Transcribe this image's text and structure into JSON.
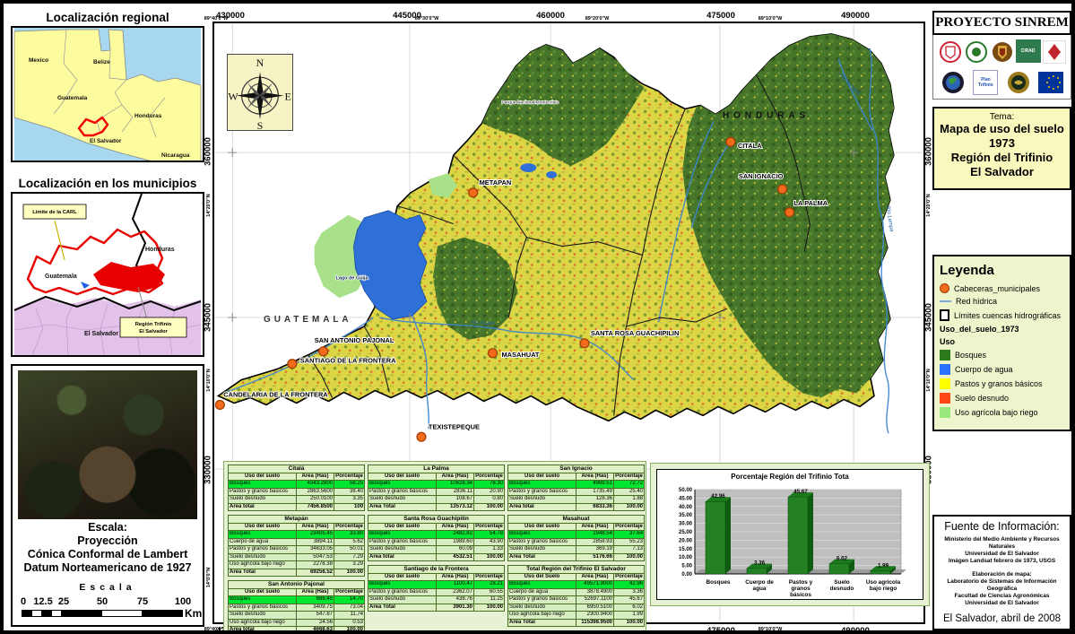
{
  "left_panel": {
    "regional": {
      "title": "Localización regional",
      "labels": [
        "Mexico",
        "Belize",
        "Guatemala",
        "Honduras",
        "El Salvador",
        "Nicaragua"
      ]
    },
    "municipios": {
      "title": "Localización en los municipios",
      "callout_carl": "Limite de la CARL",
      "callout_trifinio_1": "Región Trifinio",
      "callout_trifinio_2": "El Salvador",
      "labels": [
        "Guatemala",
        "Honduras",
        "El Salvador"
      ]
    },
    "escala": {
      "line1": "Escala:",
      "line2": "Proyección",
      "line3": "Cónica Conformal de Lambert",
      "line4": "Datum Norteamericano de 1927",
      "spaced_title": "Escala",
      "ticks": [
        "0",
        "12.5",
        "25",
        "50",
        "75",
        "100"
      ],
      "unit": "Km"
    }
  },
  "map": {
    "utm_x": [
      "430000",
      "445000",
      "460000",
      "475000",
      "490000"
    ],
    "lon_labels": [
      "89°40'0\"W",
      "89°30'0\"W",
      "89°20'0\"W",
      "89°10'0\"W"
    ],
    "utm_y": [
      "360000",
      "345000",
      "330000"
    ],
    "lat_labels": [
      "14°20'0\"N",
      "14°10'0\"N",
      "14°0'0\"N"
    ],
    "country_labels": [
      "HONDURAS",
      "GUATEMALA"
    ],
    "cities": [
      "CITALA",
      "SAN IGNACIO",
      "LA PALMA",
      "METAPAN",
      "MASAHUAT",
      "SANTA ROSA GUACHIPILIN",
      "SAN ANTONIO PAJONAL",
      "SANTIAGO DE LA FRONTERA",
      "CANDELARIA DE LA FRONTERA",
      "TEXISTEPEQUE"
    ],
    "lake_label": "Lago de Güija",
    "park_label": "Parque Nacional Montecristo",
    "rivers": [
      "Río Sumpul",
      "Río Lempa",
      "Río Angue"
    ],
    "compass": {
      "n": "N",
      "e": "E",
      "s": "S",
      "w": "W"
    }
  },
  "tables": {
    "default_headers": [
      "Uso del suelo",
      "Área (Has)",
      "Porcentaje"
    ],
    "list": [
      {
        "title": "Citalá",
        "col": 0,
        "rows": [
          [
            "Bosques",
            "4343.2800",
            "58.25"
          ],
          [
            "Pastos y granos básicos",
            "2863.5600",
            "38.40"
          ],
          [
            "Suelo desnudo",
            "250.0100",
            "3.35"
          ]
        ],
        "total": [
          "Área total",
          "7456.8500",
          "100"
        ]
      },
      {
        "title": "Metapán",
        "col": 0,
        "rows": [
          [
            "Bosques",
            "23405.45",
            "33.80"
          ],
          [
            "Cuerpo de agua",
            "3894.11",
            "5.62"
          ],
          [
            "Pastos y granos básicos",
            "34633.05",
            "50.01"
          ],
          [
            "Suelo desnudo",
            "5047.53",
            "7.29"
          ],
          [
            "Uso agrícola bajo riego",
            "2278.38",
            "3.29"
          ]
        ],
        "total": [
          "Área Total",
          "69256.52",
          "100.00"
        ]
      },
      {
        "title": "San Antonio Pajonal",
        "col": 0,
        "rows": [
          [
            "Bosques",
            "686.45",
            "14.70"
          ],
          [
            "Pastos y granos básicos",
            "3409.75",
            "73.04"
          ],
          [
            "Suelo desnudo",
            "547.87",
            "11.74"
          ],
          [
            "Uso agrícola bajo riego",
            "24.56",
            "0.53"
          ]
        ],
        "total": [
          "Área total",
          "4668.63",
          "100.00"
        ]
      },
      {
        "title": "La Palma",
        "col": 1,
        "rows": [
          [
            "Bosques",
            "10628.34",
            "78.30"
          ],
          [
            "Pastos y granos básicos",
            "2836.11",
            "20.90"
          ],
          [
            "Suelo desnudo",
            "108.67",
            "0.80"
          ]
        ],
        "total": [
          "Área Total",
          "13573.12",
          "100.00"
        ]
      },
      {
        "title": "Santa Rosa Guachipilín",
        "col": 1,
        "rows": [
          [
            "Bosques",
            "2482.82",
            "54.78"
          ],
          [
            "Pastos y granos básicos",
            "1989.60",
            "43.90"
          ],
          [
            "Suelo desnudo",
            "60.09",
            "1.33"
          ]
        ],
        "total": [
          "Área total",
          "4532.51",
          "100.00"
        ]
      },
      {
        "title": "Santiago de la Frontera",
        "col": 1,
        "rows": [
          [
            "Bosques",
            "1100.47",
            "28.21"
          ],
          [
            "Pastos y granos básicos",
            "2362.07",
            "60.55"
          ],
          [
            "Suelo desnudo",
            "438.76",
            "11.25"
          ]
        ],
        "total": [
          "Área Total",
          "3901.30",
          "100.00"
        ]
      },
      {
        "title": "San Ignacio",
        "col": 2,
        "rows": [
          [
            "Bosques",
            "4969.51",
            "72.72"
          ],
          [
            "Pastos y granos básicos",
            "1735.49",
            "25.40"
          ],
          [
            "Suelo desnudo",
            "128.36",
            "1.88"
          ]
        ],
        "total": [
          "Área total",
          "6833.36",
          "100.00"
        ]
      },
      {
        "title": "Masahuat",
        "col": 2,
        "rows": [
          [
            "Bosques",
            "1948.54",
            "37.64"
          ],
          [
            "Pastos y granos básicos",
            "2858.93",
            "55.23"
          ],
          [
            "Suelo desnudo",
            "369.19",
            "7.13"
          ]
        ],
        "total": [
          "Área Total",
          "5176.66",
          "100.00"
        ]
      },
      {
        "title": "Total Región del Trifinio El Salvador",
        "col": 2,
        "headers": [
          "Uso del Suelo",
          "Área (Has)",
          "Porcentaje"
        ],
        "rows": [
          [
            "Bosques",
            "49571.9000",
            "42.96"
          ],
          [
            "Cuerpo de agua",
            "3878.4900",
            "3.36"
          ],
          [
            "Pastos y granos básicos",
            "52697.1100",
            "45.67"
          ],
          [
            "Suelo desnudo",
            "6950.5100",
            "6.02"
          ],
          [
            "Uso agrícola bajo riego",
            "2300.9400",
            "1.99"
          ]
        ],
        "total": [
          "Área Total",
          "115398.9500",
          "100.00"
        ]
      }
    ]
  },
  "chart_data": {
    "type": "bar",
    "title": "Porcentaje Región del Trifinio Tota",
    "categories": [
      "Bosques",
      "Cuerpo de agua",
      "Pastos y granos básicos",
      "Suelo desnudo",
      "Uso agrícola bajo riego"
    ],
    "values": [
      42.96,
      3.36,
      45.67,
      6.02,
      1.99
    ],
    "data_labels": [
      "42.96",
      "3.36",
      "45.67",
      "6.02",
      "1.99"
    ],
    "ylim": [
      0,
      50
    ],
    "ytick_step": 5,
    "bar_color": "#238023",
    "plot_bg": "#bfbfbf",
    "style": "3d",
    "legend": "none"
  },
  "right_panel": {
    "project_title": "PROYECTO SINREM",
    "logos": [
      {
        "name": "universidad-seal-red"
      },
      {
        "name": "seal-green"
      },
      {
        "name": "shield-gold"
      },
      {
        "name": "cirad",
        "text": "CIRAD"
      },
      {
        "name": "uclm-red"
      },
      {
        "name": "earth-seal"
      },
      {
        "name": "plan-trifinio",
        "text": "Plan Trifinio"
      },
      {
        "name": "gold-seal"
      },
      {
        "name": "eu-flag"
      }
    ],
    "tema": {
      "label": "Tema:",
      "lines": [
        "Mapa de uso del suelo",
        "1973",
        "Región del Trifinio",
        "El Salvador"
      ]
    },
    "leyenda": {
      "title": "Leyenda",
      "items": [
        {
          "label": "Cabeceras_municipales",
          "swatch": "circle",
          "color": "#f26a1b"
        },
        {
          "label": "Red hídrica",
          "swatch": "line",
          "color": "#7da7d9"
        },
        {
          "label": "Límites cuencas hidrográficas",
          "swatch": "square-outline",
          "color": "#ffffff"
        },
        {
          "label": "Uso_del_suelo_1973",
          "swatch": "none"
        },
        {
          "label": "Uso",
          "swatch": "none"
        },
        {
          "label": "Bosques",
          "swatch": "square",
          "color": "#2c7a1d"
        },
        {
          "label": "Cuerpo de agua",
          "swatch": "square",
          "color": "#2a72ff"
        },
        {
          "label": "Pastos y granos básicos",
          "swatch": "square",
          "color": "#ffff00"
        },
        {
          "label": "Suelo desnudo",
          "swatch": "square",
          "color": "#ff4713"
        },
        {
          "label": "Uso agrícola bajo riego",
          "swatch": "square",
          "color": "#97e87a"
        }
      ]
    },
    "fuente": {
      "title": "Fuente de Información:",
      "source_lines": [
        "Ministerio del Medio Ambiente y Recursos Naturales",
        "Universidad de El Salvador",
        "Imágen Landsat febrero de 1973, USGS"
      ],
      "elab_lines": [
        "Elaboración de mapa:",
        "Laboratorio de Sistemas de Información Geográfica",
        "Facultad de Ciencias Agronómicas",
        "Universidad de El Salvador"
      ],
      "footer": "El Salvador, abril de 2008"
    }
  }
}
